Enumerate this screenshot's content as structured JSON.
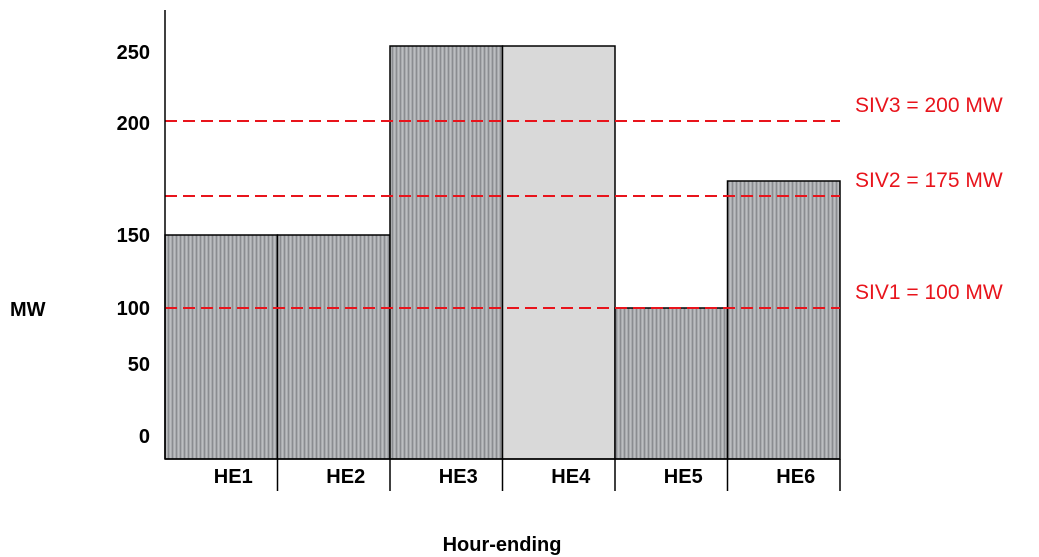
{
  "chart_data": {
    "type": "bar",
    "title": "",
    "ylabel": "MW",
    "xlabel": "Hour-ending",
    "categories": [
      "HE1",
      "HE2",
      "HE3",
      "HE4",
      "HE5",
      "HE6"
    ],
    "values": [
      150,
      150,
      250,
      250,
      100,
      180
    ],
    "bar_styles": [
      "hatched",
      "hatched",
      "hatched",
      "solid-light",
      "hatched",
      "hatched"
    ],
    "y_ticks": [
      {
        "value": 0,
        "label": "0"
      },
      {
        "value": 50,
        "label": "50"
      },
      {
        "value": 100,
        "label": "100"
      },
      {
        "value": 150,
        "label": "150"
      },
      {
        "value": 200,
        "label": "200"
      },
      {
        "value": 250,
        "label": "250"
      }
    ],
    "reference_lines": [
      {
        "value": 200,
        "label": "SIV3 = 200 MW"
      },
      {
        "value": 175,
        "label": "SIV2 = 175 MW"
      },
      {
        "value": 100,
        "label": "SIV1 = 100 MW"
      }
    ],
    "grid": false,
    "legend": "none",
    "colors": {
      "hatched_bar": "#a9abae",
      "hatched_stripe": "#8a8c90",
      "solid_bar": "#d9d9d9",
      "bar_outline": "#000000",
      "reference_line": "#e8141c"
    }
  }
}
